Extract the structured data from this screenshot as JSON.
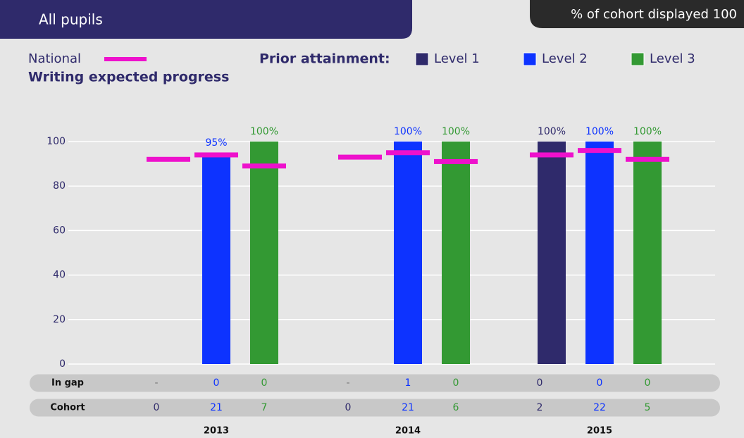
{
  "header": {
    "title": "All pupils",
    "badge": "% of cohort displayed 100"
  },
  "chart_data": {
    "type": "bar",
    "title": "Writing expected progress",
    "legend_title": "Prior attainment:",
    "national_label": "National",
    "national_color": "#ee11cc",
    "categories": [
      "2013",
      "2014",
      "2015"
    ],
    "series": [
      {
        "name": "Level 1",
        "color": "#2f2a6b",
        "values": [
          null,
          null,
          100
        ],
        "value_labels": [
          null,
          null,
          "100%"
        ],
        "national": [
          92,
          93,
          94
        ]
      },
      {
        "name": "Level 2",
        "color": "#0d33ff",
        "values": [
          95,
          100,
          100
        ],
        "value_labels": [
          "95%",
          "100%",
          "100%"
        ],
        "national": [
          94,
          95,
          96
        ]
      },
      {
        "name": "Level 3",
        "color": "#339933",
        "values": [
          100,
          100,
          100
        ],
        "value_labels": [
          "100%",
          "100%",
          "100%"
        ],
        "national": [
          89,
          91,
          92
        ]
      }
    ],
    "rows": [
      {
        "label": "In gap",
        "values": [
          [
            "-",
            0,
            0
          ],
          [
            "-",
            1,
            0
          ],
          [
            0,
            0,
            0
          ]
        ]
      },
      {
        "label": "Cohort",
        "values": [
          [
            0,
            21,
            7
          ],
          [
            0,
            21,
            6
          ],
          [
            2,
            22,
            5
          ]
        ]
      }
    ],
    "ylim": [
      0,
      100
    ],
    "yticks": [
      0,
      20,
      40,
      60,
      80,
      100
    ],
    "grid": true
  }
}
